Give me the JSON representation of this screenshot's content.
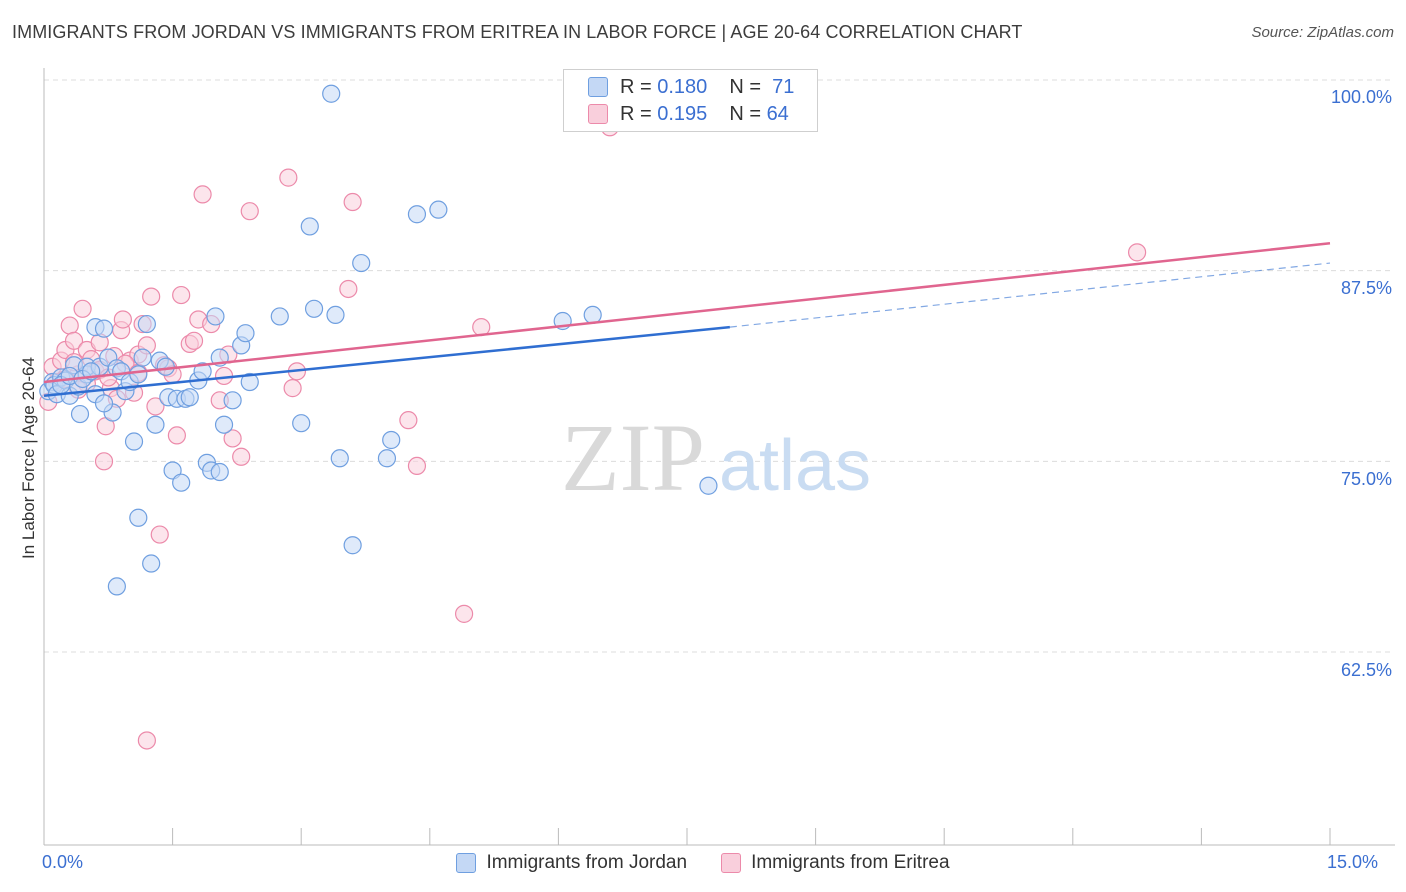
{
  "title": "IMMIGRANTS FROM JORDAN VS IMMIGRANTS FROM ERITREA IN LABOR FORCE | AGE 20-64 CORRELATION CHART",
  "source": "Source: ZipAtlas.com",
  "watermark": {
    "zip": "ZIP",
    "atlas": "atlas"
  },
  "colors": {
    "jordan": "#6f9fe0",
    "jordan_fill": "#c4d8f5",
    "jordan_line": "#2f6ed1",
    "eritrea": "#ec8aaa",
    "eritrea_fill": "#f9cfdc",
    "eritrea_line": "#e0658f",
    "axis_text": "#3b6fd1",
    "grid": "#dcdcdc"
  },
  "legend": {
    "jordan": {
      "r_label": "R =",
      "r_value": "0.180",
      "n_label": "N =",
      "n_value": "71"
    },
    "eritrea": {
      "r_label": "R =",
      "r_value": "0.195",
      "n_label": "N =",
      "n_value": "64"
    }
  },
  "bottom_legend": {
    "jordan": "Immigrants from Jordan",
    "eritrea": "Immigrants from Eritrea"
  },
  "chart_data": {
    "type": "scatter",
    "title": "IMMIGRANTS FROM JORDAN VS IMMIGRANTS FROM ERITREA IN LABOR FORCE | AGE 20-64 CORRELATION CHART",
    "xlabel": "",
    "ylabel": "In Labor Force | Age 20-64",
    "xlim": [
      0.0,
      15.0
    ],
    "ylim": [
      51.5,
      101.0
    ],
    "x_tick_labels": [
      "0.0%",
      "15.0%"
    ],
    "y_ticks": [
      62.5,
      75.0,
      87.5,
      100.0
    ],
    "y_tick_labels": [
      "62.5%",
      "75.0%",
      "87.5%",
      "100.0%"
    ],
    "grid": true,
    "series": [
      {
        "name": "Immigrants from Jordan",
        "R": 0.18,
        "N": 71,
        "trend": {
          "x": [
            0.0,
            8.0
          ],
          "y": [
            79.3,
            83.8
          ],
          "dashed_x": [
            8.0,
            15.0
          ],
          "dashed_y": [
            83.8,
            88.0
          ]
        },
        "points": [
          [
            0.05,
            79.6
          ],
          [
            0.1,
            80.2
          ],
          [
            0.12,
            80.0
          ],
          [
            0.15,
            79.4
          ],
          [
            0.2,
            80.5
          ],
          [
            0.25,
            80.3
          ],
          [
            0.3,
            79.3
          ],
          [
            0.35,
            81.3
          ],
          [
            0.4,
            79.9
          ],
          [
            0.42,
            78.1
          ],
          [
            0.5,
            80.7
          ],
          [
            0.5,
            81.2
          ],
          [
            0.6,
            83.8
          ],
          [
            0.65,
            81.2
          ],
          [
            0.7,
            83.7
          ],
          [
            0.75,
            81.8
          ],
          [
            0.8,
            78.2
          ],
          [
            0.85,
            81.1
          ],
          [
            0.9,
            80.9
          ],
          [
            0.95,
            79.6
          ],
          [
            1.05,
            76.3
          ],
          [
            1.1,
            71.3
          ],
          [
            1.15,
            81.8
          ],
          [
            1.2,
            84.0
          ],
          [
            1.25,
            68.3
          ],
          [
            1.3,
            77.4
          ],
          [
            1.35,
            81.6
          ],
          [
            1.42,
            81.2
          ],
          [
            1.45,
            79.2
          ],
          [
            1.5,
            74.4
          ],
          [
            1.55,
            79.1
          ],
          [
            1.6,
            73.6
          ],
          [
            1.65,
            79.1
          ],
          [
            1.7,
            79.2
          ],
          [
            1.8,
            80.3
          ],
          [
            1.85,
            80.9
          ],
          [
            1.9,
            74.9
          ],
          [
            1.95,
            74.4
          ],
          [
            2.0,
            84.5
          ],
          [
            2.05,
            74.3
          ],
          [
            2.05,
            81.8
          ],
          [
            2.1,
            77.4
          ],
          [
            2.2,
            79.0
          ],
          [
            2.3,
            82.6
          ],
          [
            2.35,
            83.4
          ],
          [
            2.4,
            80.2
          ],
          [
            2.75,
            84.5
          ],
          [
            3.0,
            77.5
          ],
          [
            3.1,
            90.4
          ],
          [
            3.15,
            85.0
          ],
          [
            3.35,
            99.1
          ],
          [
            3.4,
            84.6
          ],
          [
            3.45,
            75.2
          ],
          [
            3.6,
            69.5
          ],
          [
            3.7,
            88.0
          ],
          [
            4.0,
            75.2
          ],
          [
            4.05,
            76.4
          ],
          [
            4.35,
            91.2
          ],
          [
            4.6,
            91.5
          ],
          [
            6.05,
            84.2
          ],
          [
            6.4,
            84.6
          ],
          [
            7.75,
            73.4
          ],
          [
            0.85,
            66.8
          ],
          [
            0.2,
            80.0
          ],
          [
            0.3,
            80.6
          ],
          [
            0.45,
            80.4
          ],
          [
            0.55,
            80.9
          ],
          [
            0.6,
            79.4
          ],
          [
            0.7,
            78.8
          ],
          [
            1.0,
            80.2
          ],
          [
            1.1,
            80.7
          ]
        ]
      },
      {
        "name": "Immigrants from Eritrea",
        "R": 0.195,
        "N": 64,
        "trend": {
          "x": [
            0.0,
            15.0
          ],
          "y": [
            80.2,
            89.3
          ]
        },
        "points": [
          [
            0.05,
            78.9
          ],
          [
            0.1,
            81.2
          ],
          [
            0.15,
            80.2
          ],
          [
            0.2,
            81.6
          ],
          [
            0.25,
            82.3
          ],
          [
            0.3,
            83.9
          ],
          [
            0.35,
            82.9
          ],
          [
            0.4,
            80.7
          ],
          [
            0.45,
            85.0
          ],
          [
            0.5,
            82.3
          ],
          [
            0.55,
            81.7
          ],
          [
            0.6,
            80.9
          ],
          [
            0.65,
            82.8
          ],
          [
            0.7,
            75.0
          ],
          [
            0.72,
            77.3
          ],
          [
            0.78,
            79.8
          ],
          [
            0.82,
            81.9
          ],
          [
            0.9,
            83.6
          ],
          [
            0.92,
            84.3
          ],
          [
            1.0,
            81.6
          ],
          [
            1.05,
            79.5
          ],
          [
            1.1,
            82.0
          ],
          [
            1.15,
            84.0
          ],
          [
            1.2,
            82.6
          ],
          [
            1.25,
            85.8
          ],
          [
            1.3,
            78.6
          ],
          [
            1.35,
            70.2
          ],
          [
            1.4,
            81.3
          ],
          [
            1.45,
            81.1
          ],
          [
            1.5,
            80.7
          ],
          [
            1.55,
            76.7
          ],
          [
            1.6,
            85.9
          ],
          [
            1.7,
            82.7
          ],
          [
            1.75,
            82.9
          ],
          [
            1.8,
            84.3
          ],
          [
            1.85,
            92.5
          ],
          [
            1.95,
            84.0
          ],
          [
            2.05,
            79.0
          ],
          [
            2.1,
            80.6
          ],
          [
            2.15,
            82.0
          ],
          [
            2.2,
            76.5
          ],
          [
            2.3,
            75.3
          ],
          [
            2.4,
            91.4
          ],
          [
            2.85,
            93.6
          ],
          [
            2.9,
            79.8
          ],
          [
            2.95,
            80.9
          ],
          [
            3.55,
            86.3
          ],
          [
            3.6,
            92.0
          ],
          [
            4.25,
            77.7
          ],
          [
            4.35,
            74.7
          ],
          [
            4.9,
            65.0
          ],
          [
            5.1,
            83.8
          ],
          [
            6.6,
            96.9
          ],
          [
            12.75,
            88.7
          ],
          [
            1.2,
            56.7
          ],
          [
            0.25,
            80.4
          ],
          [
            0.35,
            81.5
          ],
          [
            0.5,
            80.1
          ],
          [
            0.65,
            81.0
          ],
          [
            0.75,
            80.5
          ],
          [
            0.85,
            79.1
          ],
          [
            0.95,
            81.4
          ],
          [
            1.1,
            80.8
          ],
          [
            0.4,
            79.7
          ]
        ]
      }
    ]
  }
}
